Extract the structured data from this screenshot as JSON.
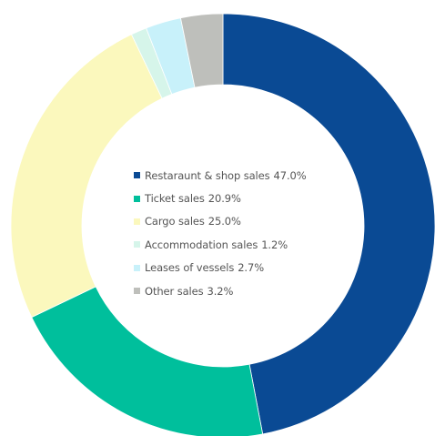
{
  "chart_data": {
    "type": "pie",
    "variant": "donut",
    "title": "",
    "unit": "%",
    "slices": [
      {
        "label": "Restaraunt & shop sales",
        "value": 47.0,
        "value_label": "47.0%",
        "color": "#0a4a94"
      },
      {
        "label": "Ticket sales",
        "value": 20.9,
        "value_label": "20.9%",
        "color": "#00bf9c"
      },
      {
        "label": "Cargo sales",
        "value": 25.0,
        "value_label": "25.0%",
        "color": "#fbf8bd"
      },
      {
        "label": "Accommodation sales",
        "value": 1.2,
        "value_label": "1.2%",
        "color": "#d6f5ea"
      },
      {
        "label": "Leases of vessels",
        "value": 2.7,
        "value_label": "2.7%",
        "color": "#c8f1fa"
      },
      {
        "label": "Other sales",
        "value": 3.2,
        "value_label": "3.2%",
        "color": "#bebfbb"
      }
    ],
    "legend_position": "center"
  }
}
